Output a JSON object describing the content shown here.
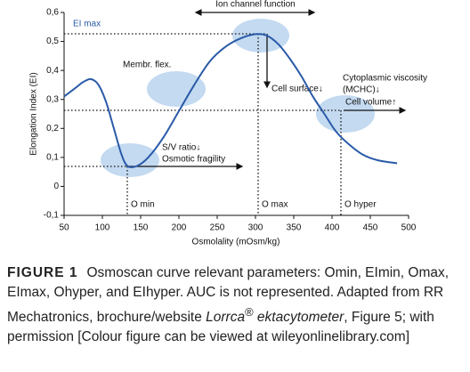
{
  "chart_data": {
    "type": "line",
    "title": "Ion channel function",
    "x_label": "Osmolality (mOsm/kg)",
    "y_label": "Elongation Index (EI)",
    "xlim": [
      50,
      500
    ],
    "xticks": [
      50,
      100,
      150,
      200,
      250,
      300,
      350,
      400,
      450,
      500
    ],
    "ylim": [
      -0.1,
      0.6
    ],
    "yticks": [
      {
        "value": -0.1,
        "label": "-0,1"
      },
      0,
      {
        "value": 0.1,
        "label": "0,1"
      },
      {
        "value": 0.2,
        "label": "0,2"
      },
      {
        "value": 0.3,
        "label": "0,3"
      },
      {
        "value": 0.4,
        "label": "0,4"
      },
      {
        "value": 0.5,
        "label": "0,5"
      },
      {
        "value": 0.6,
        "label": "0,6"
      }
    ],
    "series": [
      {
        "color": "#2a5aa8",
        "x": [
          50,
          65,
          75,
          85,
          95,
          105,
          115,
          125,
          133,
          145,
          160,
          180,
          200,
          220,
          240,
          260,
          280,
          300,
          315,
          330,
          345,
          360,
          375,
          390,
          405,
          420,
          440,
          460,
          485
        ],
        "values": [
          0.31,
          0.34,
          0.36,
          0.37,
          0.35,
          0.29,
          0.2,
          0.11,
          0.07,
          0.07,
          0.1,
          0.17,
          0.26,
          0.35,
          0.43,
          0.48,
          0.51,
          0.525,
          0.52,
          0.49,
          0.44,
          0.38,
          0.31,
          0.25,
          0.19,
          0.15,
          0.11,
          0.09,
          0.08
        ]
      }
    ],
    "annotations": {
      "ei_max": "EI max",
      "membr": "Membr. flex.",
      "cell_surface": "Cell surface↓",
      "viscosity": "Cytoplasmic viscosity",
      "mchc": "(MCHC)↓",
      "cell_volume": "Cell volume↑",
      "sv": "S/V ratio↓",
      "fragility": "Osmotic fragility",
      "omin": "O min",
      "omax": "O max",
      "ohyper": "O hyper"
    }
  },
  "caption": {
    "label": "FIGURE 1",
    "text_before": "Osmoscan curve relevant parameters: Omin, EImin, Omax, EImax, Ohyper, and EIhyper. AUC is not represented. Adapted from RR Mechatronics, brochure/website ",
    "italic": "Lorrca",
    "sup": "®",
    "italic2": " ektacytometer",
    "text_after": ", Figure 5; with permission [Colour figure can be viewed at wileyonlinelibrary.com]"
  }
}
